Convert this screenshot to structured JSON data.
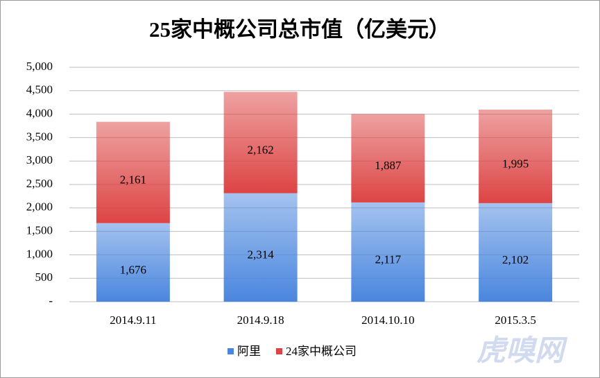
{
  "chart_data": {
    "type": "stacked_bar",
    "title": "25家中概公司总市值（亿美元）",
    "categories": [
      "2014.9.11",
      "2014.9.18",
      "2014.10.10",
      "2015.3.5"
    ],
    "series": [
      {
        "name": "阿里",
        "color": "#4a86de",
        "values": [
          1676,
          2314,
          2117,
          2102
        ],
        "value_labels": [
          "1,676",
          "2,314",
          "2,117",
          "2,102"
        ]
      },
      {
        "name": "24家中概公司",
        "color": "#dd4444",
        "values": [
          2161,
          2162,
          1887,
          1995
        ],
        "value_labels": [
          "2,161",
          "2,162",
          "1,887",
          "1,995"
        ]
      }
    ],
    "ylim": [
      0,
      5000
    ],
    "yticks": [
      {
        "value": 0,
        "label": "-"
      },
      500,
      {
        "value": 1000,
        "label": "1,000"
      },
      {
        "value": 1500,
        "label": "1,500"
      },
      {
        "value": 2000,
        "label": "2,000"
      },
      {
        "value": 2500,
        "label": "2,500"
      },
      {
        "value": 3000,
        "label": "3,000"
      },
      {
        "value": 3500,
        "label": "3,500"
      },
      {
        "value": 4000,
        "label": "4,000"
      },
      {
        "value": 4500,
        "label": "4,500"
      },
      {
        "value": 5000,
        "label": "5,000"
      }
    ],
    "grid": true,
    "legend": "bottom",
    "watermark": "虎嗅网"
  }
}
